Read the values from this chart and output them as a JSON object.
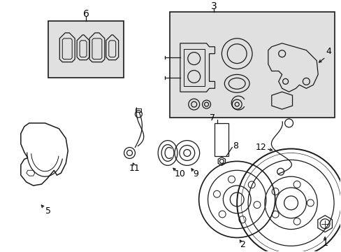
{
  "bg_color": "#ffffff",
  "line_color": "#1a1a1a",
  "box_fill": "#e0e0e0",
  "label_color": "#000000",
  "fig_width": 4.89,
  "fig_height": 3.6,
  "dpi": 100
}
